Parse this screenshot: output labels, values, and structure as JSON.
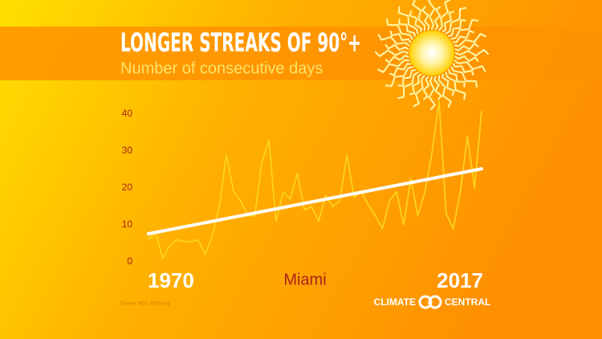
{
  "chart_data": {
    "type": "line",
    "title": "LONGER STREAKS OF 90°+",
    "subtitle": "Number of consecutive days",
    "annotation": "Miami",
    "source": "Source: RCC-ACIS.org",
    "logo": {
      "left": "CLIMATE",
      "right": "CENTRAL"
    },
    "x": [
      1970,
      1971,
      1972,
      1973,
      1974,
      1975,
      1976,
      1977,
      1978,
      1979,
      1980,
      1981,
      1982,
      1983,
      1984,
      1985,
      1986,
      1987,
      1988,
      1989,
      1990,
      1991,
      1992,
      1993,
      1994,
      1995,
      1996,
      1997,
      1998,
      1999,
      2000,
      2001,
      2002,
      2003,
      2004,
      2005,
      2006,
      2007,
      2008,
      2009,
      2010,
      2011,
      2012,
      2013,
      2014,
      2015,
      2016,
      2017
    ],
    "values": [
      6,
      8,
      1,
      4.5,
      6,
      5.5,
      5.5,
      6,
      2,
      7,
      15,
      29,
      19,
      16.5,
      12.5,
      12.5,
      27,
      33,
      11,
      19,
      17,
      24,
      14,
      15,
      11,
      18,
      15,
      16.5,
      29,
      17.5,
      19,
      15.5,
      12.5,
      9,
      16.5,
      19,
      10,
      22.5,
      12.5,
      19,
      29.5,
      43.5,
      13,
      9,
      19,
      34,
      20,
      41
    ],
    "color": "#ffd21a",
    "trend": {
      "x": [
        1970,
        2017
      ],
      "values": [
        7.6,
        25.2
      ],
      "color": "#ffffff"
    },
    "xlim": [
      1970,
      2017
    ],
    "xticks": [
      1970,
      2017
    ],
    "ylim": [
      0,
      40
    ],
    "yticks": [
      0,
      10,
      20,
      30,
      40
    ]
  }
}
